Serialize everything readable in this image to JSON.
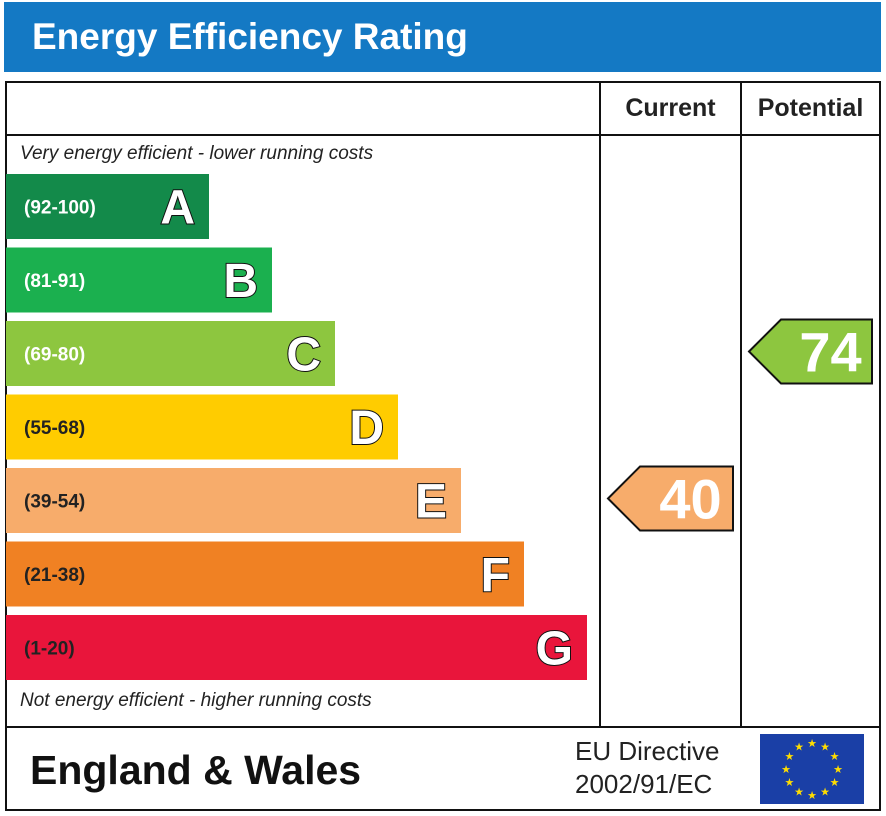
{
  "title": "Energy Efficiency Rating",
  "chart_data": {
    "type": "bar",
    "columns": [
      "Current",
      "Potential"
    ],
    "top_note": "Very energy efficient - lower running costs",
    "bottom_note": "Not energy efficient - higher running costs",
    "bands": [
      {
        "range": "(92-100)",
        "letter": "A",
        "color": "#138a4a"
      },
      {
        "range": "(81-91)",
        "letter": "B",
        "color": "#1bb04f"
      },
      {
        "range": "(69-80)",
        "letter": "C",
        "color": "#8dc63f"
      },
      {
        "range": "(55-68)",
        "letter": "D",
        "color": "#ffcc00"
      },
      {
        "range": "(39-54)",
        "letter": "E",
        "color": "#f7ac6b"
      },
      {
        "range": "(21-38)",
        "letter": "F",
        "color": "#f08123"
      },
      {
        "range": "(1-20)",
        "letter": "G",
        "color": "#e9153b"
      }
    ],
    "current": {
      "value": 40,
      "band": "E",
      "color": "#f7ac6b"
    },
    "potential": {
      "value": 74,
      "band": "C",
      "color": "#8dc63f"
    }
  },
  "footer": {
    "region": "England & Wales",
    "directive_line1": "EU Directive",
    "directive_line2": "2002/91/EC"
  }
}
